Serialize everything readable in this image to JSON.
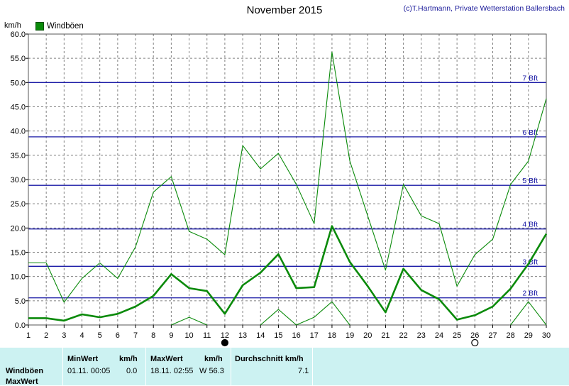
{
  "title": "November 2015",
  "credit": "(c)T.Hartmann, Private Wetterstation Ballersbach",
  "unit_label": "km/h",
  "legend_label": "Windböen",
  "colors": {
    "series": "#0a8a0a",
    "beaufort": "#1a1aa6",
    "panel": "#ccf2f2",
    "grid": "#808080"
  },
  "chart_data": {
    "type": "line",
    "title": "November 2015",
    "ylabel": "km/h",
    "ylim": [
      0,
      60
    ],
    "yticks": [
      "0.0",
      "5.0",
      "10.0",
      "15.0",
      "20.0",
      "25.0",
      "30.0",
      "35.0",
      "40.0",
      "45.0",
      "50.0",
      "55.0",
      "60.0"
    ],
    "x": [
      1,
      2,
      3,
      4,
      5,
      6,
      7,
      8,
      9,
      10,
      11,
      12,
      13,
      14,
      15,
      16,
      17,
      18,
      19,
      20,
      21,
      22,
      23,
      24,
      25,
      26,
      27,
      28,
      29,
      30
    ],
    "xticks": [
      "1",
      "2",
      "3",
      "4",
      "5",
      "6",
      "7",
      "8",
      "9",
      "10",
      "11",
      "12",
      "13",
      "14",
      "15",
      "16",
      "17",
      "18",
      "19",
      "20",
      "21",
      "22",
      "23",
      "24",
      "25",
      "26",
      "27",
      "28",
      "29",
      "30"
    ],
    "grid": true,
    "series": [
      {
        "name": "Windböen",
        "role": "max",
        "values": [
          12.8,
          12.8,
          4.7,
          9.6,
          12.8,
          9.6,
          16.1,
          27.4,
          30.6,
          19.3,
          17.7,
          14.5,
          37.0,
          32.2,
          35.4,
          29.0,
          20.9,
          56.3,
          33.8,
          22.5,
          11.3,
          29.0,
          22.5,
          20.9,
          8.0,
          14.5,
          17.7,
          29.0,
          33.8,
          46.7
        ]
      },
      {
        "role": "average",
        "values": [
          1.4,
          1.4,
          0.9,
          2.2,
          1.6,
          2.3,
          3.8,
          6.0,
          10.5,
          7.6,
          7.0,
          2.3,
          8.2,
          10.8,
          14.6,
          7.6,
          7.8,
          20.4,
          13.0,
          8.0,
          2.6,
          11.6,
          7.2,
          5.3,
          1.1,
          2.0,
          3.8,
          7.5,
          12.6,
          18.8
        ]
      },
      {
        "role": "min",
        "values": [
          null,
          null,
          null,
          null,
          null,
          null,
          null,
          null,
          0.0,
          1.6,
          0.0,
          null,
          null,
          0.0,
          3.2,
          0.0,
          1.6,
          4.8,
          0.0,
          null,
          null,
          null,
          null,
          null,
          null,
          null,
          null,
          0.0,
          4.8,
          0.0
        ]
      }
    ],
    "reference_lines": [
      {
        "label": "2 Bft",
        "value": 5.6
      },
      {
        "label": "3 Bft",
        "value": 12.1
      },
      {
        "label": "4 Bft",
        "value": 19.8
      },
      {
        "label": "5 Bft",
        "value": 28.8
      },
      {
        "label": "6 Bft",
        "value": 38.8
      },
      {
        "label": "7 Bft",
        "value": 50.0
      }
    ],
    "moon_phases": [
      {
        "day": 12,
        "phase": "new"
      },
      {
        "day": 26,
        "phase": "full"
      }
    ]
  },
  "stats": {
    "row_label_gusts": "Windböen",
    "row_label_max": "MaxWert",
    "min_header": "MinWert",
    "min_unit_header": "km/h",
    "max_header": "MaxWert",
    "max_unit_header": "km/h",
    "avg_header": "Durchschnitt km/h",
    "min_datetime": "01.11.  00:05",
    "min_value": "0.0",
    "max_datetime": "18.11.  02:55",
    "max_value": "W 56.3",
    "avg_value": "7.1"
  }
}
